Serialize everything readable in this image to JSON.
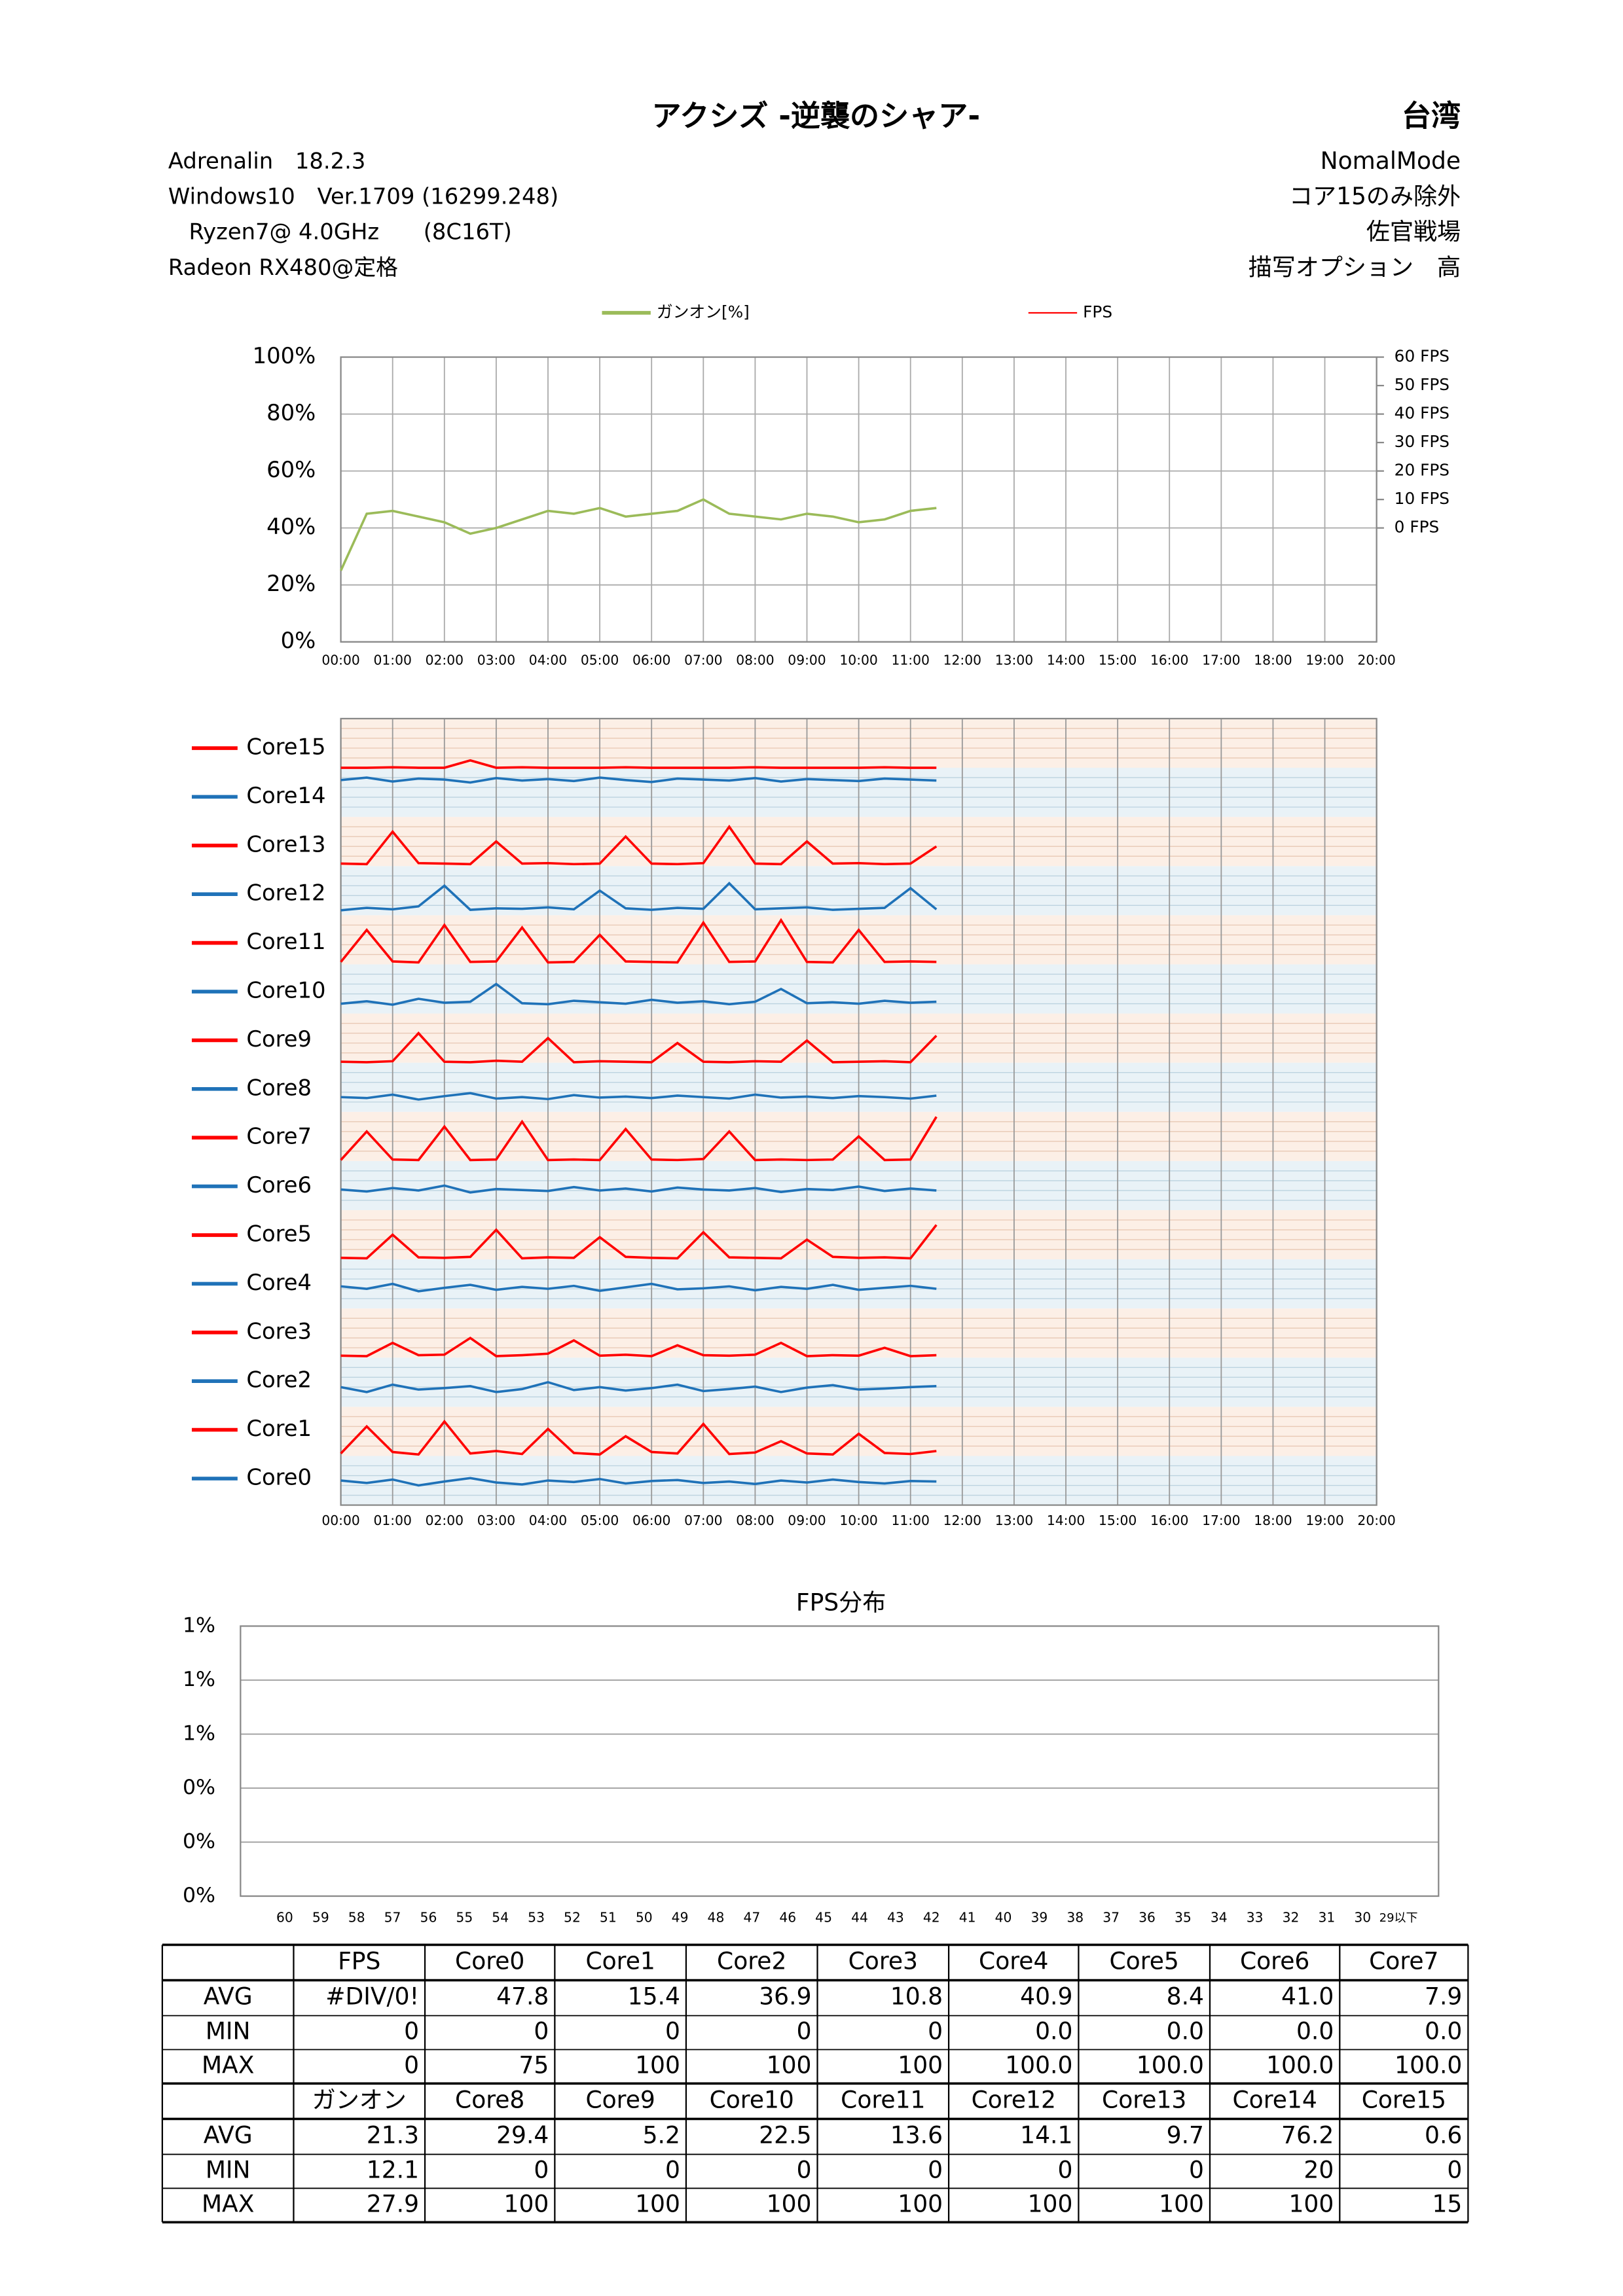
{
  "header": {
    "title": "アクシズ -逆襲のシャア-",
    "region": "台湾",
    "left": [
      "Adrenalin　18.2.3",
      "Windows10　Ver.1709 (16299.248)",
      "Ryzen7@ 4.0GHz　　(8C16T)",
      "Radeon RX480@定格"
    ],
    "right": [
      "NomalMode",
      "コア15のみ除外",
      "佐官戦場",
      "描写オプション　高"
    ]
  },
  "chart_data": [
    {
      "type": "line",
      "x": [
        0,
        30,
        60,
        90,
        120,
        150,
        180,
        210,
        240,
        270,
        300,
        330,
        360,
        390,
        420,
        450,
        480,
        510,
        540,
        570,
        600,
        630,
        660,
        690
      ],
      "xlim": [
        0,
        1200
      ],
      "xticks": [
        {
          "value": 0,
          "label": "00:00"
        },
        {
          "value": 60,
          "label": "01:00"
        },
        {
          "value": 120,
          "label": "02:00"
        },
        {
          "value": 180,
          "label": "03:00"
        },
        {
          "value": 240,
          "label": "04:00"
        },
        {
          "value": 300,
          "label": "05:00"
        },
        {
          "value": 360,
          "label": "06:00"
        },
        {
          "value": 420,
          "label": "07:00"
        },
        {
          "value": 480,
          "label": "08:00"
        },
        {
          "value": 540,
          "label": "09:00"
        },
        {
          "value": 600,
          "label": "10:00"
        },
        {
          "value": 660,
          "label": "11:00"
        },
        {
          "value": 720,
          "label": "12:00"
        },
        {
          "value": 780,
          "label": "13:00"
        },
        {
          "value": 840,
          "label": "14:00"
        },
        {
          "value": 900,
          "label": "15:00"
        },
        {
          "value": 960,
          "label": "16:00"
        },
        {
          "value": 1020,
          "label": "17:00"
        },
        {
          "value": 1080,
          "label": "18:00"
        },
        {
          "value": 1140,
          "label": "19:00"
        },
        {
          "value": 1200,
          "label": "20:00"
        }
      ],
      "ylim": [
        0,
        100
      ],
      "yticks": [
        {
          "value": 0,
          "label": "0%"
        },
        {
          "value": 20,
          "label": "20%"
        },
        {
          "value": 40,
          "label": "40%"
        },
        {
          "value": 60,
          "label": "60%"
        },
        {
          "value": 80,
          "label": "80%"
        },
        {
          "value": 100,
          "label": "100%"
        }
      ],
      "y2lim": [
        -40,
        60
      ],
      "y2ticks": [
        {
          "value": 60,
          "label": "60 FPS"
        },
        {
          "value": 50,
          "label": "50 FPS"
        },
        {
          "value": 40,
          "label": "40 FPS"
        },
        {
          "value": 30,
          "label": "30 FPS"
        },
        {
          "value": 20,
          "label": "20 FPS"
        },
        {
          "value": 10,
          "label": "10 FPS"
        },
        {
          "value": 0,
          "label": "0 FPS"
        }
      ],
      "grid": true,
      "series": [
        {
          "name": "ガンオン[%]",
          "color": "#9bbb59",
          "values": [
            25,
            45,
            46,
            44,
            42,
            38,
            40,
            43,
            46,
            45,
            47,
            44,
            45,
            46,
            50,
            45,
            44,
            43,
            45,
            44,
            42,
            43,
            46,
            47
          ]
        },
        {
          "name": "FPS",
          "color": "#ff0000",
          "axis": "y2",
          "values": [
            null,
            null,
            null,
            null,
            null,
            null,
            null,
            null,
            null,
            null,
            null,
            null,
            null,
            null,
            null,
            null,
            null,
            null,
            null,
            null,
            null,
            null,
            null,
            null
          ]
        }
      ]
    },
    {
      "type": "strip",
      "x": [
        0,
        30,
        60,
        90,
        120,
        150,
        180,
        210,
        240,
        270,
        300,
        330,
        360,
        390,
        420,
        450,
        480,
        510,
        540,
        570,
        600,
        630,
        660,
        690
      ],
      "xlim": [
        0,
        1200
      ],
      "xticks": [
        {
          "value": 0,
          "label": "00:00"
        },
        {
          "value": 60,
          "label": "01:00"
        },
        {
          "value": 120,
          "label": "02:00"
        },
        {
          "value": 180,
          "label": "03:00"
        },
        {
          "value": 240,
          "label": "04:00"
        },
        {
          "value": 300,
          "label": "05:00"
        },
        {
          "value": 360,
          "label": "06:00"
        },
        {
          "value": 420,
          "label": "07:00"
        },
        {
          "value": 480,
          "label": "08:00"
        },
        {
          "value": 540,
          "label": "09:00"
        },
        {
          "value": 600,
          "label": "10:00"
        },
        {
          "value": 660,
          "label": "11:00"
        },
        {
          "value": 720,
          "label": "12:00"
        },
        {
          "value": 780,
          "label": "13:00"
        },
        {
          "value": 840,
          "label": "14:00"
        },
        {
          "value": 900,
          "label": "15:00"
        },
        {
          "value": 960,
          "label": "16:00"
        },
        {
          "value": 1020,
          "label": "17:00"
        },
        {
          "value": 1080,
          "label": "18:00"
        },
        {
          "value": 1140,
          "label": "19:00"
        },
        {
          "value": 1200,
          "label": "20:00"
        }
      ],
      "ylim": [
        0,
        100
      ],
      "series": [
        {
          "name": "Core0",
          "color": "#1f72b8",
          "values": [
            50,
            45,
            52,
            40,
            48,
            55,
            46,
            42,
            50,
            47,
            53,
            44,
            49,
            51,
            45,
            48,
            43,
            50,
            46,
            52,
            47,
            44,
            49,
            48
          ]
        },
        {
          "name": "Core1",
          "color": "#ff0000",
          "values": [
            5,
            60,
            8,
            3,
            70,
            5,
            10,
            4,
            55,
            6,
            3,
            40,
            8,
            5,
            65,
            4,
            7,
            30,
            5,
            3,
            45,
            6,
            4,
            10
          ]
        },
        {
          "name": "Core2",
          "color": "#1f72b8",
          "values": [
            40,
            30,
            45,
            35,
            38,
            42,
            30,
            36,
            50,
            34,
            40,
            33,
            38,
            45,
            32,
            36,
            41,
            30,
            39,
            44,
            35,
            37,
            40,
            42
          ]
        },
        {
          "name": "Core3",
          "color": "#ff0000",
          "values": [
            4,
            3,
            30,
            5,
            6,
            40,
            3,
            5,
            8,
            35,
            4,
            6,
            3,
            25,
            5,
            4,
            6,
            30,
            3,
            5,
            4,
            20,
            3,
            5
          ]
        },
        {
          "name": "Core4",
          "color": "#1f72b8",
          "values": [
            45,
            40,
            50,
            35,
            42,
            48,
            38,
            44,
            40,
            46,
            36,
            43,
            50,
            39,
            41,
            45,
            37,
            44,
            40,
            48,
            38,
            42,
            46,
            40
          ]
        },
        {
          "name": "Core5",
          "color": "#ff0000",
          "values": [
            3,
            2,
            50,
            4,
            3,
            5,
            60,
            2,
            4,
            3,
            45,
            5,
            3,
            2,
            55,
            4,
            3,
            2,
            40,
            5,
            3,
            4,
            2,
            70
          ]
        },
        {
          "name": "Core6",
          "color": "#1f72b8",
          "values": [
            42,
            38,
            45,
            40,
            50,
            36,
            43,
            41,
            39,
            47,
            40,
            44,
            38,
            46,
            42,
            40,
            45,
            37,
            43,
            41,
            48,
            39,
            44,
            40
          ]
        },
        {
          "name": "Core7",
          "color": "#ff0000",
          "values": [
            2,
            60,
            3,
            2,
            70,
            2,
            3,
            80,
            2,
            3,
            2,
            65,
            3,
            2,
            4,
            60,
            2,
            3,
            2,
            3,
            50,
            2,
            3,
            90
          ]
        },
        {
          "name": "Core8",
          "color": "#1f72b8",
          "values": [
            30,
            28,
            35,
            25,
            32,
            38,
            27,
            30,
            26,
            34,
            29,
            31,
            28,
            33,
            30,
            27,
            35,
            29,
            31,
            28,
            32,
            30,
            27,
            33
          ]
        },
        {
          "name": "Core9",
          "color": "#ff0000",
          "values": [
            2,
            1,
            3,
            60,
            2,
            1,
            4,
            2,
            50,
            1,
            3,
            2,
            1,
            40,
            2,
            1,
            3,
            2,
            45,
            1,
            2,
            3,
            1,
            55
          ]
        },
        {
          "name": "Core10",
          "color": "#1f72b8",
          "values": [
            20,
            25,
            18,
            30,
            22,
            24,
            60,
            21,
            19,
            26,
            23,
            20,
            28,
            22,
            25,
            19,
            24,
            50,
            21,
            23,
            20,
            26,
            22,
            24
          ]
        },
        {
          "name": "Core11",
          "color": "#ff0000",
          "values": [
            5,
            70,
            6,
            4,
            80,
            5,
            6,
            75,
            4,
            5,
            60,
            6,
            5,
            4,
            85,
            5,
            6,
            90,
            5,
            4,
            70,
            5,
            6,
            5
          ]
        },
        {
          "name": "Core12",
          "color": "#1f72b8",
          "values": [
            10,
            15,
            12,
            18,
            60,
            11,
            14,
            13,
            16,
            12,
            50,
            14,
            11,
            15,
            13,
            65,
            12,
            14,
            16,
            11,
            13,
            15,
            55,
            12
          ]
        },
        {
          "name": "Core13",
          "color": "#ff0000",
          "values": [
            5,
            4,
            70,
            6,
            5,
            4,
            50,
            5,
            6,
            4,
            5,
            60,
            5,
            4,
            6,
            80,
            5,
            4,
            50,
            5,
            6,
            4,
            5,
            40
          ]
        },
        {
          "name": "Core14",
          "color": "#1f72b8",
          "values": [
            75,
            80,
            72,
            78,
            76,
            70,
            79,
            74,
            77,
            73,
            80,
            75,
            71,
            78,
            76,
            74,
            79,
            72,
            77,
            75,
            73,
            78,
            76,
            74
          ]
        },
        {
          "name": "Core15",
          "color": "#ff0000",
          "values": [
            0,
            0,
            1,
            0,
            0,
            15,
            0,
            1,
            0,
            0,
            0,
            1,
            0,
            0,
            0,
            0,
            1,
            0,
            0,
            0,
            0,
            1,
            0,
            0
          ]
        }
      ]
    },
    {
      "type": "bar",
      "title": "FPS分布",
      "categories": [
        "60",
        "59",
        "58",
        "57",
        "56",
        "55",
        "54",
        "53",
        "52",
        "51",
        "50",
        "49",
        "48",
        "47",
        "46",
        "45",
        "44",
        "43",
        "42",
        "41",
        "40",
        "39",
        "38",
        "37",
        "36",
        "35",
        "34",
        "33",
        "32",
        "31",
        "30",
        "29以下"
      ],
      "values": [
        0,
        0,
        0,
        0,
        0,
        0,
        0,
        0,
        0,
        0,
        0,
        0,
        0,
        0,
        0,
        0,
        0,
        0,
        0,
        0,
        0,
        0,
        0,
        0,
        0,
        0,
        0,
        0,
        0,
        0,
        0,
        0
      ],
      "color": "#4f81bd",
      "ylim": [
        0,
        1
      ],
      "yticks": [
        {
          "value": 0,
          "label": "0%"
        },
        {
          "value": 0.2,
          "label": "0%"
        },
        {
          "value": 0.4,
          "label": "0%"
        },
        {
          "value": 0.6,
          "label": "1%"
        },
        {
          "value": 0.8,
          "label": "1%"
        },
        {
          "value": 1,
          "label": "1%"
        }
      ],
      "grid": true
    }
  ],
  "table": {
    "sections": [
      {
        "header": [
          "FPS",
          "Core0",
          "Core1",
          "Core2",
          "Core3",
          "Core4",
          "Core5",
          "Core6",
          "Core7"
        ],
        "rows": [
          {
            "label": "AVG",
            "cells": [
              "#DIV/0!",
              "47.8",
              "15.4",
              "36.9",
              "10.8",
              "40.9",
              "8.4",
              "41.0",
              "7.9"
            ]
          },
          {
            "label": "MIN",
            "cells": [
              "0",
              "0",
              "0",
              "0",
              "0",
              "0.0",
              "0.0",
              "0.0",
              "0.0"
            ]
          },
          {
            "label": "MAX",
            "cells": [
              "0",
              "75",
              "100",
              "100",
              "100",
              "100.0",
              "100.0",
              "100.0",
              "100.0"
            ]
          }
        ]
      },
      {
        "header": [
          "ガンオン",
          "Core8",
          "Core9",
          "Core10",
          "Core11",
          "Core12",
          "Core13",
          "Core14",
          "Core15"
        ],
        "rows": [
          {
            "label": "AVG",
            "cells": [
              "21.3",
              "29.4",
              "5.2",
              "22.5",
              "13.6",
              "14.1",
              "9.7",
              "76.2",
              "0.6"
            ]
          },
          {
            "label": "MIN",
            "cells": [
              "12.1",
              "0",
              "0",
              "0",
              "0",
              "0",
              "0",
              "20",
              "0"
            ]
          },
          {
            "label": "MAX",
            "cells": [
              "27.9",
              "100",
              "100",
              "100",
              "100",
              "100",
              "100",
              "100",
              "15"
            ]
          }
        ]
      }
    ]
  }
}
